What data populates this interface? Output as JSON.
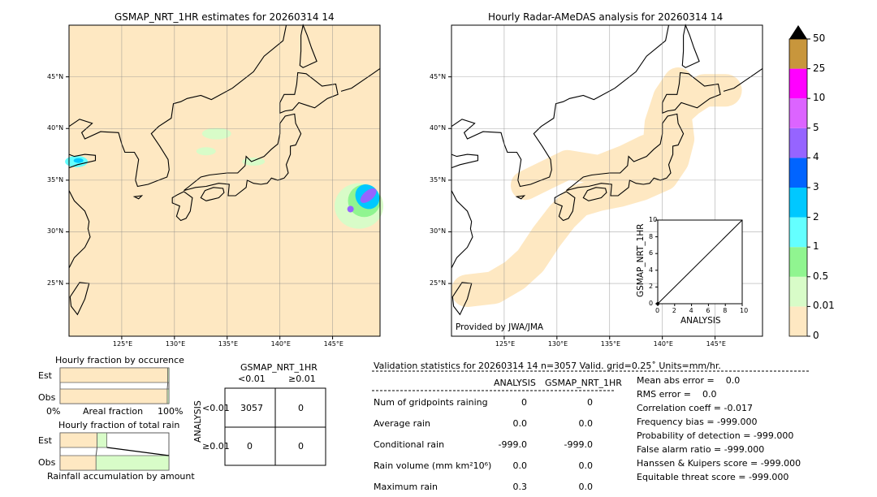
{
  "left_map": {
    "title": "GSMAP_NRT_1HR estimates for 20260314 14"
  },
  "right_map": {
    "title": "Hourly Radar-AMeDAS analysis for 20260314 14",
    "credit": "Provided by JWA/JMA"
  },
  "map_axes": {
    "lon_ticks": [
      "125°E",
      "130°E",
      "135°E",
      "140°E",
      "145°E"
    ],
    "lat_ticks": [
      "45°N",
      "40°N",
      "35°N",
      "30°N",
      "25°N"
    ]
  },
  "inset": {
    "ylabel": "GSMAP_NRT_1HR",
    "xlabel": "ANALYSIS",
    "ticks": [
      "0",
      "2",
      "4",
      "6",
      "8",
      "10"
    ]
  },
  "colorbar": {
    "labels": [
      "0",
      "0.01",
      "0.5",
      "1",
      "2",
      "3",
      "4",
      "5",
      "10",
      "25",
      "50"
    ],
    "colors": [
      "#fee8c2",
      "#d8fcc8",
      "#90f590",
      "#64ffff",
      "#00c8ff",
      "#0064ff",
      "#9664ff",
      "#dc64ff",
      "#ff00ff",
      "#c8963c"
    ],
    "extend_color": "#000000"
  },
  "occurrence": {
    "title": "Hourly fraction by occurence",
    "rows": [
      "Est",
      "Obs"
    ],
    "xlabel": "Areal fraction",
    "x_left": "0%",
    "x_right": "100%",
    "est_fraction_no_rain": 0.99,
    "obs_fraction_no_rain": 0.985
  },
  "total_rain": {
    "title": "Hourly fraction of total rain",
    "rows": [
      "Est",
      "Obs"
    ],
    "xlabel": "Rainfall accumulation by amount",
    "est_fractions": [
      0.34,
      0.09
    ],
    "obs_fractions": [
      0.33,
      0.67
    ]
  },
  "contingency": {
    "col_title": "GSMAP_NRT_1HR",
    "cols": [
      "<0.01",
      "≥0.01"
    ],
    "row_title": "ANALYSIS",
    "rows": [
      "<0.01",
      "≥0.01"
    ],
    "cells": [
      [
        "3057",
        "0"
      ],
      [
        "0",
        "0"
      ]
    ]
  },
  "stats": {
    "header": "Validation statistics for 20260314 14  n=3057 Valid. grid=0.25˚ Units=mm/hr.",
    "col_analysis": "ANALYSIS",
    "col_gsmap": "GSMAP_NRT_1HR",
    "rows": [
      {
        "label": "Num of gridpoints raining",
        "analysis": "0",
        "gsmap": "0"
      },
      {
        "label": "Average rain",
        "analysis": "0.0",
        "gsmap": "0.0"
      },
      {
        "label": "Conditional rain",
        "analysis": "-999.0",
        "gsmap": "-999.0"
      },
      {
        "label": "Rain volume (mm km²10⁶)",
        "analysis": "0.0",
        "gsmap": "0.0"
      },
      {
        "label": "Maximum rain",
        "analysis": "0.3",
        "gsmap": "0.0"
      }
    ],
    "scores": [
      "Mean abs error =    0.0",
      "RMS error =    0.0",
      "Correlation coeff = -0.017",
      "Frequency bias = -999.000",
      "Probability of detection = -999.000",
      "False alarm ratio = -999.000",
      "Hanssen & Kuipers score = -999.000",
      "Equitable threat score = -999.000"
    ]
  },
  "chart_data": [
    {
      "type": "heatmap",
      "title": "GSMAP_NRT_1HR estimates for 20260314 14",
      "xlim": [
        120,
        149.5
      ],
      "ylim": [
        20,
        50
      ],
      "grid": true
    },
    {
      "type": "heatmap",
      "title": "Hourly Radar-AMeDAS analysis for 20260314 14",
      "xlim": [
        120,
        149.5
      ],
      "ylim": [
        20,
        50
      ],
      "grid": true
    },
    {
      "type": "scatter",
      "xlabel": "ANALYSIS",
      "ylabel": "GSMAP_NRT_1HR",
      "xlim": [
        0,
        10
      ],
      "ylim": [
        0,
        10
      ],
      "points": [
        [
          0,
          0
        ]
      ],
      "diagonal": true
    }
  ]
}
